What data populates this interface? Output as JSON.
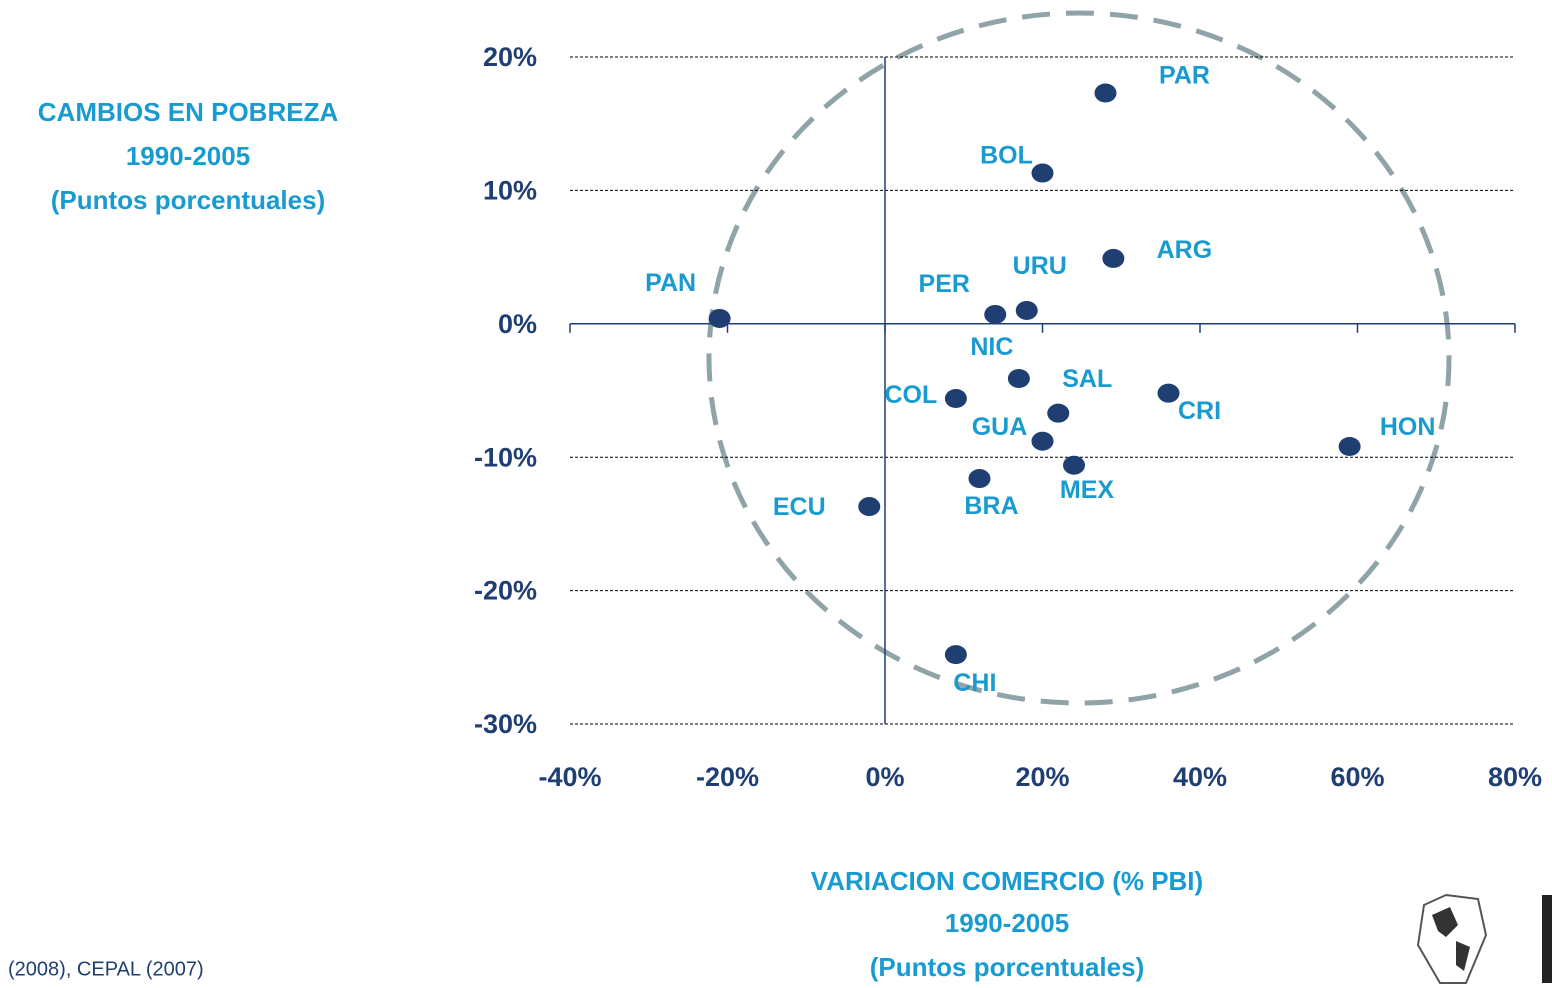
{
  "chart_data": {
    "type": "scatter",
    "y_label": [
      "CAMBIOS EN POBREZA",
      "1990-2005",
      "(Puntos porcentuales)"
    ],
    "x_label": [
      "VARIACION COMERCIO (% PBI)",
      "1990-2005",
      "(Puntos porcentuales)"
    ],
    "source": "(2008), CEPAL (2007)",
    "color": "#1f3f73",
    "label_color": "#1a9bd0",
    "names": [
      "PAR",
      "BOL",
      "ARG",
      "URU",
      "PER",
      "PAN",
      "NIC",
      "COL",
      "SAL",
      "CRI",
      "GUA",
      "HON",
      "MEX",
      "BRA",
      "ECU",
      "CHI"
    ],
    "x": [
      28,
      20,
      29,
      18,
      14,
      -21,
      17,
      9,
      22,
      36,
      20,
      59,
      24,
      12,
      -2,
      9
    ],
    "y": [
      17.3,
      11.3,
      4.9,
      1.0,
      0.7,
      0.4,
      -4.1,
      -5.6,
      -6.7,
      -5.2,
      -8.8,
      -9.2,
      -10.6,
      -11.6,
      -13.7,
      -24.8
    ],
    "xlim": [
      -40,
      80
    ],
    "ylim": [
      -30,
      20
    ],
    "xticks": [
      {
        "value": -40,
        "label": "-40%"
      },
      {
        "value": -20,
        "label": "-20%"
      },
      {
        "value": 0,
        "label": "0%"
      },
      {
        "value": 20,
        "label": "20%"
      },
      {
        "value": 40,
        "label": "40%"
      },
      {
        "value": 60,
        "label": "60%"
      },
      {
        "value": 80,
        "label": "80%"
      }
    ],
    "yticks": [
      {
        "value": -30,
        "label": "-30%"
      },
      {
        "value": -20,
        "label": "-20%"
      },
      {
        "value": -10,
        "label": "-10%"
      },
      {
        "value": 0,
        "label": "0%"
      },
      {
        "value": 10,
        "label": "10%"
      },
      {
        "value": 20,
        "label": "20%"
      }
    ],
    "grid": true
  }
}
